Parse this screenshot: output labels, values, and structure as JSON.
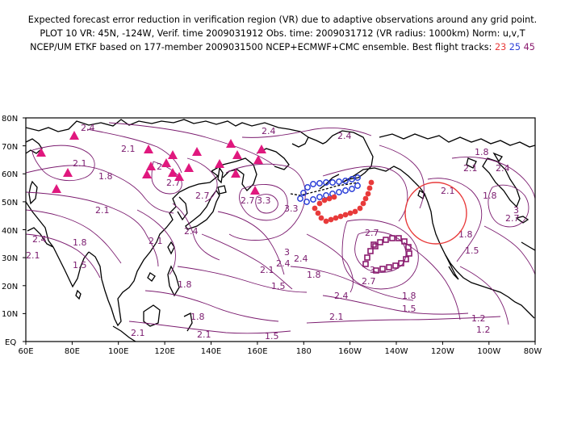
{
  "title": {
    "line1": "Expected forecast error reduction in verification region (VR) due to adaptive observations around any grid point.",
    "line2": "PLOT 10 VR: 45N, -124W, Verif. time 2009031912 Obs. time: 2009031712 (VR radius: 1000km) Norm: u,v,T",
    "line3_prefix": "NCEP/UM ETKF based on 177-member 2009031500 NCEP+ECMWF+CMC ensemble. Best flight tracks: ",
    "track_23": "23",
    "track_25": "25",
    "track_45": "45"
  },
  "colors": {
    "track_23": "#e83a3a",
    "track_25": "#2b3fd8",
    "track_45": "#8a1a6e",
    "triangles": "#e0187e",
    "contours": "#7a1a6e",
    "verification_circle": "#e83a3a"
  },
  "axes": {
    "lat_labels": [
      "80N",
      "70N",
      "60N",
      "50N",
      "40N",
      "30N",
      "20N",
      "10N",
      "EQ"
    ],
    "lon_labels": [
      "60E",
      "80E",
      "100E",
      "120E",
      "140E",
      "160E",
      "180",
      "160W",
      "140W",
      "120W",
      "100W",
      "80W"
    ]
  },
  "contour_labels": [
    {
      "text": "2.4"
    },
    {
      "text": "2.1"
    },
    {
      "text": "2.1"
    },
    {
      "text": "1.8"
    },
    {
      "text": "2.1"
    },
    {
      "text": "2.4"
    },
    {
      "text": "2.1"
    },
    {
      "text": "1.8"
    },
    {
      "text": "1.5"
    },
    {
      "text": "2"
    },
    {
      "text": "2.7"
    },
    {
      "text": "2.7"
    },
    {
      "text": "2.4"
    },
    {
      "text": "2.1"
    },
    {
      "text": "1.8"
    },
    {
      "text": "1.8"
    },
    {
      "text": "2.1"
    },
    {
      "text": "2.1"
    },
    {
      "text": "2.4"
    },
    {
      "text": "3.3"
    },
    {
      "text": "3.3"
    },
    {
      "text": "2.7"
    },
    {
      "text": "2.4"
    },
    {
      "text": "2.1"
    },
    {
      "text": "3"
    },
    {
      "text": "2.4"
    },
    {
      "text": "2.4"
    },
    {
      "text": "1.8"
    },
    {
      "text": "1.5"
    },
    {
      "text": "1.5"
    },
    {
      "text": "2.7"
    },
    {
      "text": "3"
    },
    {
      "text": "2.7"
    },
    {
      "text": "2.4"
    },
    {
      "text": "2.1"
    },
    {
      "text": "1.8"
    },
    {
      "text": "1.5"
    },
    {
      "text": "1.8"
    },
    {
      "text": "2.1"
    },
    {
      "text": "1.8"
    },
    {
      "text": "2.4"
    },
    {
      "text": "2.1"
    },
    {
      "text": "3"
    },
    {
      "text": "2.7"
    },
    {
      "text": "1.8"
    },
    {
      "text": "1.5"
    },
    {
      "text": "1.2"
    },
    {
      "text": "1.2"
    }
  ]
}
